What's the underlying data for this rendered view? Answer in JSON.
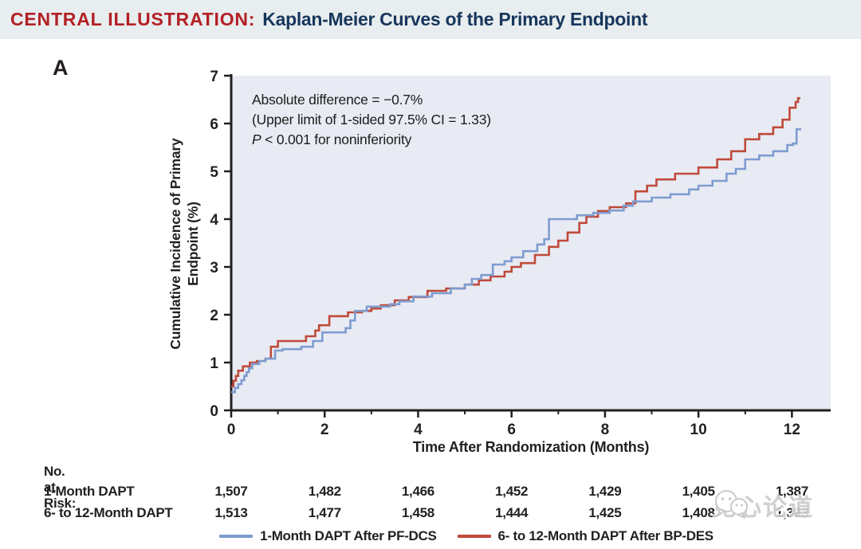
{
  "header": {
    "kicker": "CENTRAL ILLUSTRATION:",
    "title": "Kaplan-Meier Curves of the Primary Endpoint"
  },
  "panel_label": "A",
  "annotation": {
    "line1": "Absolute difference = −0.7%",
    "line2": "(Upper limit of 1-sided 97.5% CI = 1.33)",
    "p_italic": "P",
    "p_rest": " < 0.001 for noninferiority"
  },
  "chart_data": {
    "type": "line",
    "subtype": "kaplan-meier-step",
    "xlabel": "Time After Randomization (Months)",
    "ylabel_line1": "Cumulative Incidence of Primary",
    "ylabel_line2": "Endpoint (%)",
    "xlim": [
      0,
      12.83
    ],
    "ylim": [
      0,
      7
    ],
    "x_ticks": [
      0,
      2,
      4,
      6,
      8,
      10,
      12
    ],
    "x_minor_ticks": [
      1,
      3,
      5,
      7,
      9,
      11
    ],
    "y_ticks": [
      0,
      1,
      2,
      3,
      4,
      5,
      6,
      7
    ],
    "plot_bg": "#e8ebf3",
    "axis_color": "#231f20",
    "grid": false,
    "legend_position": "bottom",
    "series": [
      {
        "name": "6- to 12-Month DAPT After BP-DES",
        "color": "#bf4a3a",
        "end_x": 12.18,
        "points": [
          [
            0,
            0.5
          ],
          [
            0.05,
            0.62
          ],
          [
            0.1,
            0.72
          ],
          [
            0.15,
            0.83
          ],
          [
            0.25,
            0.92
          ],
          [
            0.4,
            1.0
          ],
          [
            0.55,
            1.03
          ],
          [
            0.73,
            1.08
          ],
          [
            0.85,
            1.33
          ],
          [
            1.0,
            1.45
          ],
          [
            1.6,
            1.55
          ],
          [
            1.8,
            1.67
          ],
          [
            1.88,
            1.78
          ],
          [
            2.1,
            1.97
          ],
          [
            2.5,
            2.05
          ],
          [
            2.8,
            2.08
          ],
          [
            3.0,
            2.13
          ],
          [
            3.2,
            2.2
          ],
          [
            3.5,
            2.3
          ],
          [
            3.8,
            2.37
          ],
          [
            4.2,
            2.5
          ],
          [
            4.6,
            2.55
          ],
          [
            5.0,
            2.63
          ],
          [
            5.3,
            2.72
          ],
          [
            5.55,
            2.8
          ],
          [
            5.85,
            2.9
          ],
          [
            6.0,
            3.0
          ],
          [
            6.2,
            3.08
          ],
          [
            6.5,
            3.25
          ],
          [
            6.8,
            3.42
          ],
          [
            7.0,
            3.55
          ],
          [
            7.2,
            3.72
          ],
          [
            7.45,
            3.92
          ],
          [
            7.6,
            4.05
          ],
          [
            7.85,
            4.17
          ],
          [
            8.1,
            4.25
          ],
          [
            8.45,
            4.33
          ],
          [
            8.65,
            4.58
          ],
          [
            8.9,
            4.7
          ],
          [
            9.1,
            4.83
          ],
          [
            9.5,
            4.95
          ],
          [
            10.0,
            5.08
          ],
          [
            10.4,
            5.25
          ],
          [
            10.7,
            5.42
          ],
          [
            11.0,
            5.67
          ],
          [
            11.3,
            5.78
          ],
          [
            11.6,
            5.92
          ],
          [
            11.8,
            6.08
          ],
          [
            11.95,
            6.33
          ],
          [
            12.08,
            6.45
          ],
          [
            12.13,
            6.53
          ]
        ]
      },
      {
        "name": "1-Month DAPT After PF-DCS",
        "color": "#7e9cd0",
        "end_x": 12.2,
        "points": [
          [
            0,
            0.38
          ],
          [
            0.08,
            0.47
          ],
          [
            0.15,
            0.55
          ],
          [
            0.22,
            0.63
          ],
          [
            0.28,
            0.72
          ],
          [
            0.33,
            0.8
          ],
          [
            0.38,
            0.88
          ],
          [
            0.45,
            0.97
          ],
          [
            0.6,
            1.03
          ],
          [
            0.73,
            1.08
          ],
          [
            0.94,
            1.25
          ],
          [
            1.1,
            1.28
          ],
          [
            1.5,
            1.33
          ],
          [
            1.75,
            1.45
          ],
          [
            1.95,
            1.63
          ],
          [
            2.45,
            1.72
          ],
          [
            2.55,
            1.88
          ],
          [
            2.65,
            2.08
          ],
          [
            2.9,
            2.17
          ],
          [
            3.4,
            2.22
          ],
          [
            3.6,
            2.28
          ],
          [
            3.9,
            2.38
          ],
          [
            4.3,
            2.45
          ],
          [
            4.7,
            2.55
          ],
          [
            5.0,
            2.63
          ],
          [
            5.15,
            2.75
          ],
          [
            5.35,
            2.83
          ],
          [
            5.6,
            3.05
          ],
          [
            5.85,
            3.12
          ],
          [
            6.0,
            3.2
          ],
          [
            6.25,
            3.33
          ],
          [
            6.55,
            3.47
          ],
          [
            6.7,
            3.58
          ],
          [
            6.8,
            4.0
          ],
          [
            7.4,
            4.08
          ],
          [
            7.75,
            4.13
          ],
          [
            8.1,
            4.18
          ],
          [
            8.4,
            4.28
          ],
          [
            8.6,
            4.37
          ],
          [
            9.0,
            4.45
          ],
          [
            9.4,
            4.52
          ],
          [
            9.8,
            4.62
          ],
          [
            10.0,
            4.7
          ],
          [
            10.3,
            4.8
          ],
          [
            10.6,
            4.95
          ],
          [
            10.8,
            5.05
          ],
          [
            11.0,
            5.25
          ],
          [
            11.3,
            5.33
          ],
          [
            11.6,
            5.42
          ],
          [
            11.9,
            5.55
          ],
          [
            12.02,
            5.58
          ],
          [
            12.1,
            5.88
          ]
        ]
      }
    ]
  },
  "risk_table": {
    "title": "No. at Risk:",
    "months": [
      0,
      2,
      4,
      6,
      8,
      10,
      12
    ],
    "rows": [
      {
        "label": "1-Month DAPT",
        "values": [
          "1,507",
          "1,482",
          "1,466",
          "1,452",
          "1,429",
          "1,405",
          "1,387"
        ]
      },
      {
        "label": "6- to 12-Month DAPT",
        "values": [
          "1,513",
          "1,477",
          "1,458",
          "1,444",
          "1,425",
          "1,408",
          "1,393"
        ]
      }
    ]
  },
  "legend": [
    {
      "label": "1-Month DAPT After PF-DCS",
      "color": "#7e9cd0"
    },
    {
      "label": "6- to 12-Month DAPT After BP-DES",
      "color": "#bf4a3a"
    }
  ],
  "watermark": {
    "icon": "wechat-icon",
    "text": "见心论道"
  },
  "colors": {
    "header_bg": "#e8edef",
    "kicker": "#b32025",
    "title": "#17365d",
    "axis": "#231f20",
    "plot_bg": "#e8ebf3",
    "blue_series": "#7e9cd0",
    "red_series": "#bf4a3a"
  }
}
